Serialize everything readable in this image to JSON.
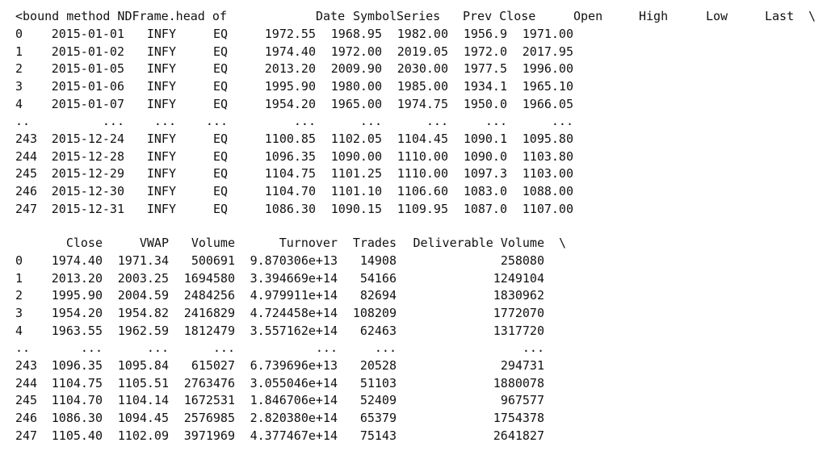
{
  "output": {
    "prefix": "<bound method NDFrame.head of",
    "tables": [
      {
        "columns": [
          "Date",
          "Symbol",
          "Series",
          "Prev Close",
          "Open",
          "High",
          "Low",
          "Last"
        ],
        "continuation": "\\",
        "rows": [
          [
            "0",
            "2015-01-01",
            "INFY",
            "EQ",
            "1972.55",
            "1968.95",
            "1982.00",
            "1956.9",
            "1971.00"
          ],
          [
            "1",
            "2015-01-02",
            "INFY",
            "EQ",
            "1974.40",
            "1972.00",
            "2019.05",
            "1972.0",
            "2017.95"
          ],
          [
            "2",
            "2015-01-05",
            "INFY",
            "EQ",
            "2013.20",
            "2009.90",
            "2030.00",
            "1977.5",
            "1996.00"
          ],
          [
            "3",
            "2015-01-06",
            "INFY",
            "EQ",
            "1995.90",
            "1980.00",
            "1985.00",
            "1934.1",
            "1965.10"
          ],
          [
            "4",
            "2015-01-07",
            "INFY",
            "EQ",
            "1954.20",
            "1965.00",
            "1974.75",
            "1950.0",
            "1966.05"
          ],
          [
            "..",
            "...",
            "...",
            "...",
            "...",
            "...",
            "...",
            "...",
            "..."
          ],
          [
            "243",
            "2015-12-24",
            "INFY",
            "EQ",
            "1100.85",
            "1102.05",
            "1104.45",
            "1090.1",
            "1095.80"
          ],
          [
            "244",
            "2015-12-28",
            "INFY",
            "EQ",
            "1096.35",
            "1090.00",
            "1110.00",
            "1090.0",
            "1103.80"
          ],
          [
            "245",
            "2015-12-29",
            "INFY",
            "EQ",
            "1104.75",
            "1101.25",
            "1110.00",
            "1097.3",
            "1103.00"
          ],
          [
            "246",
            "2015-12-30",
            "INFY",
            "EQ",
            "1104.70",
            "1101.10",
            "1106.60",
            "1083.0",
            "1088.00"
          ],
          [
            "247",
            "2015-12-31",
            "INFY",
            "EQ",
            "1086.30",
            "1090.15",
            "1109.95",
            "1087.0",
            "1107.00"
          ]
        ]
      },
      {
        "columns": [
          "Close",
          "VWAP",
          "Volume",
          "Turnover",
          "Trades",
          "Deliverable Volume"
        ],
        "continuation": "\\",
        "rows": [
          [
            "0",
            "1974.40",
            "1971.34",
            "500691",
            "9.870306e+13",
            "14908",
            "258080"
          ],
          [
            "1",
            "2013.20",
            "2003.25",
            "1694580",
            "3.394669e+14",
            "54166",
            "1249104"
          ],
          [
            "2",
            "1995.90",
            "2004.59",
            "2484256",
            "4.979911e+14",
            "82694",
            "1830962"
          ],
          [
            "3",
            "1954.20",
            "1954.82",
            "2416829",
            "4.724458e+14",
            "108209",
            "1772070"
          ],
          [
            "4",
            "1963.55",
            "1962.59",
            "1812479",
            "3.557162e+14",
            "62463",
            "1317720"
          ],
          [
            "..",
            "...",
            "...",
            "...",
            "...",
            "...",
            "..."
          ],
          [
            "243",
            "1096.35",
            "1095.84",
            "615027",
            "6.739696e+13",
            "20528",
            "294731"
          ],
          [
            "244",
            "1104.75",
            "1105.51",
            "2763476",
            "3.055046e+14",
            "51103",
            "1880078"
          ],
          [
            "245",
            "1104.70",
            "1104.14",
            "1672531",
            "1.846706e+14",
            "52409",
            "967577"
          ],
          [
            "246",
            "1086.30",
            "1094.45",
            "2576985",
            "2.820380e+14",
            "65379",
            "1754378"
          ],
          [
            "247",
            "1105.40",
            "1102.09",
            "3971969",
            "4.377467e+14",
            "75143",
            "2641827"
          ]
        ]
      }
    ]
  }
}
